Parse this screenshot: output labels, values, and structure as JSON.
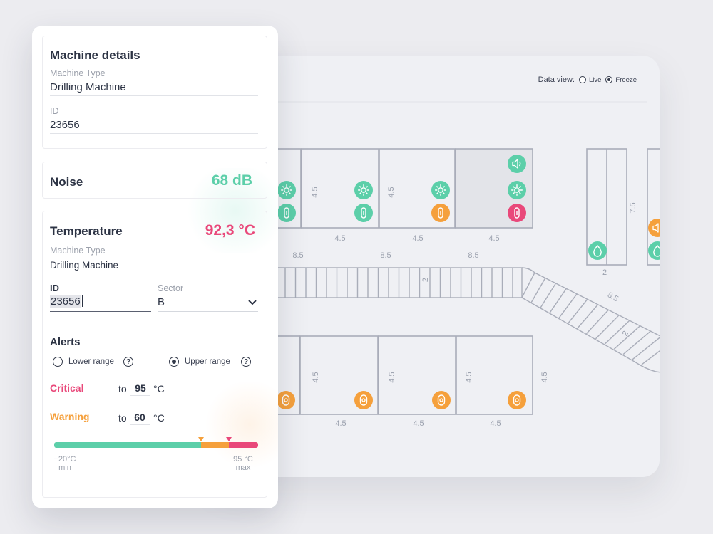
{
  "map": {
    "data_view_label": "Data view:",
    "options": [
      {
        "label": "Live",
        "selected": false
      },
      {
        "label": "Freeze",
        "selected": true
      }
    ],
    "dimensions": {
      "d45": "4.5",
      "d85": "8.5",
      "d2": "2",
      "d75": "7.5"
    },
    "colors": {
      "green": "#5ccfa9",
      "orange": "#f5a03c",
      "red": "#e9487a"
    }
  },
  "details": {
    "title": "Machine details",
    "type_label": "Machine Type",
    "type_value": "Drilling Machine",
    "id_label": "ID",
    "id_value": "23656"
  },
  "noise": {
    "title": "Noise",
    "value": "68 dB"
  },
  "temperature": {
    "title": "Temperature",
    "value": "92,3 °C",
    "type_label": "Machine Type",
    "type_value": "Drilling Machine",
    "id_label": "ID",
    "id_value": "23656",
    "sector_label": "Sector",
    "sector_value": "B"
  },
  "alerts": {
    "title": "Alerts",
    "lower_label": "Lower range",
    "lower_selected": false,
    "upper_label": "Upper range",
    "upper_selected": true,
    "critical_label": "Critical",
    "critical_to": "to",
    "critical_value": "95",
    "warning_label": "Warning",
    "warning_to": "to",
    "warning_value": "60",
    "unit": "°C",
    "range": {
      "min_value": "−20°C",
      "min_label": "min",
      "max_value": "95 °C",
      "max_label": "max",
      "green_fraction": 0.72,
      "orange_fraction": 0.135,
      "red_fraction": 0.145
    }
  }
}
